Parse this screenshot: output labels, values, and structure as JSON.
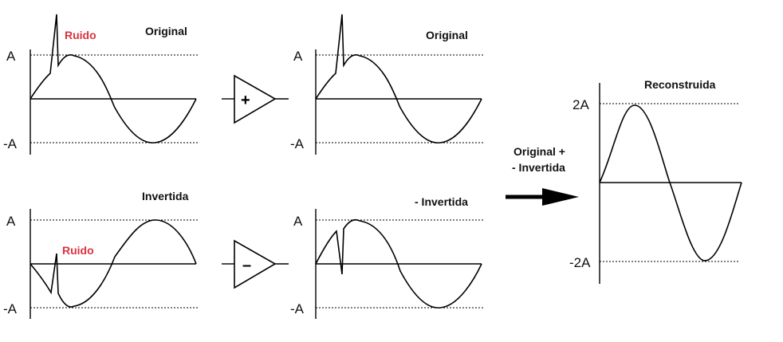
{
  "panels": {
    "original": {
      "title": "Original",
      "noise_label": "Ruido",
      "upper": "A",
      "lower": "-A"
    },
    "inverted": {
      "title": "Invertida",
      "noise_label": "Ruido",
      "upper": "A",
      "lower": "-A"
    },
    "original_out": {
      "title": "Original",
      "upper": "A",
      "lower": "-A"
    },
    "inverted_out": {
      "title": "- Invertida",
      "upper": "A",
      "lower": "-A"
    },
    "reconstructed": {
      "title": "Reconstruida",
      "upper": "2A",
      "lower": "-2A"
    }
  },
  "amplifiers": {
    "plus_symbol": "+",
    "minus_symbol": "–"
  },
  "sum_label": {
    "line1": "Original +",
    "line2": "- Invertida"
  },
  "colors": {
    "noise_label": "#d9333f",
    "stroke": "#000000"
  }
}
